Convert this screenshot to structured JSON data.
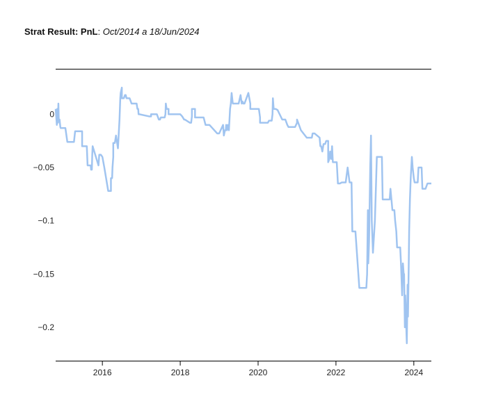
{
  "title": {
    "prefix": "Strat Result: PnL",
    "separator": ": ",
    "period": "Oct/2014 a 18/Jun/2024"
  },
  "chart_data": {
    "type": "line",
    "title": "Strat Result: PnL: Oct/2014 a 18/Jun/2024",
    "xlabel": "",
    "ylabel": "",
    "xlim": [
      2014.8,
      2024.45
    ],
    "ylim": [
      -0.232,
      0.042
    ],
    "grid": false,
    "x_ticks": [
      {
        "value": 2016,
        "label": "2016"
      },
      {
        "value": 2018,
        "label": "2018"
      },
      {
        "value": 2020,
        "label": "2020"
      },
      {
        "value": 2022,
        "label": "2022"
      },
      {
        "value": 2024,
        "label": "2024"
      }
    ],
    "y_ticks": [
      {
        "value": 0,
        "label": "0"
      },
      {
        "value": -0.05,
        "label": "−0.05"
      },
      {
        "value": -0.1,
        "label": "−0.1"
      },
      {
        "value": -0.15,
        "label": "−0.15"
      },
      {
        "value": -0.2,
        "label": "−0.2"
      }
    ],
    "series": [
      {
        "color": "#a0c4f0",
        "x": [
          2014.8,
          2014.83,
          2014.84,
          2014.86,
          2014.87,
          2014.88,
          2014.9,
          2014.92,
          2014.93,
          2014.95,
          2014.96,
          2015.05,
          2015.1,
          2015.1,
          2015.27,
          2015.3,
          2015.3,
          2015.48,
          2015.48,
          2015.6,
          2015.62,
          2015.65,
          2015.68,
          2015.7,
          2015.71,
          2015.73,
          2015.74,
          2015.75,
          2015.9,
          2015.92,
          2015.93,
          2015.96,
          2016.0,
          2016.05,
          2016.15,
          2016.2,
          2016.22,
          2016.22,
          2016.25,
          2016.26,
          2016.28,
          2016.28,
          2016.3,
          2016.32,
          2016.35,
          2016.35,
          2016.4,
          2016.44,
          2016.46,
          2016.47,
          2016.5,
          2016.5,
          2016.52,
          2016.55,
          2016.58,
          2016.6,
          2016.62,
          2016.7,
          2016.75,
          2016.75,
          2016.88,
          2016.9,
          2016.92,
          2016.93,
          2016.95,
          2016.95,
          2017.2,
          2017.22,
          2017.25,
          2017.25,
          2017.4,
          2017.45,
          2017.48,
          2017.5,
          2017.5,
          2017.6,
          2017.62,
          2017.63,
          2017.65,
          2017.7,
          2017.7,
          2017.9,
          2017.9,
          2018.0,
          2018.05,
          2018.05,
          2018.1,
          2018.12,
          2018.25,
          2018.28,
          2018.3,
          2018.3,
          2018.38,
          2018.38,
          2018.6,
          2018.65,
          2018.68,
          2018.68,
          2018.75,
          2018.75,
          2018.95,
          2018.98,
          2019.0,
          2019.0,
          2019.1,
          2019.12,
          2019.15,
          2019.17,
          2019.18,
          2019.2,
          2019.22,
          2019.25,
          2019.28,
          2019.3,
          2019.32,
          2019.35,
          2019.35,
          2019.5,
          2019.55,
          2019.58,
          2019.6,
          2019.62,
          2019.65,
          2019.7,
          2019.75,
          2019.8,
          2019.8,
          2019.95,
          2019.98,
          2020.0,
          2020.02,
          2020.05,
          2020.05,
          2020.2,
          2020.25,
          2020.28,
          2020.3,
          2020.32,
          2020.35,
          2020.37,
          2020.38,
          2020.4,
          2020.45,
          2020.5,
          2020.5,
          2020.62,
          2020.65,
          2020.7,
          2020.75,
          2020.78,
          2020.8,
          2020.8,
          2020.95,
          2021.0,
          2021.0,
          2021.05,
          2021.1,
          2021.1,
          2021.25,
          2021.3,
          2021.3,
          2021.38,
          2021.4,
          2021.45,
          2021.45,
          2021.58,
          2021.6,
          2021.62,
          2021.65,
          2021.68,
          2021.7,
          2021.72,
          2021.75,
          2021.78,
          2021.8,
          2021.8,
          2021.83,
          2021.85,
          2021.88,
          2021.9,
          2021.92,
          2021.95,
          2021.97,
          2022.0,
          2022.02,
          2022.05,
          2022.1,
          2022.15,
          2022.2,
          2022.22,
          2022.25,
          2022.3,
          2022.3,
          2022.35,
          2022.38,
          2022.4,
          2022.42,
          2022.45,
          2022.48,
          2022.5,
          2022.5,
          2022.6,
          2022.62,
          2022.65,
          2022.7,
          2022.72,
          2022.75,
          2022.78,
          2022.8,
          2022.82,
          2022.83,
          2022.85,
          2022.88,
          2022.9,
          2022.92,
          2022.95,
          2023.0,
          2023.05,
          2023.08,
          2023.1,
          2023.12,
          2023.15,
          2023.18,
          2023.2,
          2023.22,
          2023.25,
          2023.28,
          2023.3,
          2023.32,
          2023.35,
          2023.38,
          2023.4,
          2023.45,
          2023.5,
          2023.52,
          2023.55,
          2023.57,
          2023.6,
          2023.62,
          2023.64,
          2023.65,
          2023.67,
          2023.7,
          2023.72,
          2023.74,
          2023.75,
          2023.77,
          2023.78,
          2023.8,
          2023.81,
          2023.82,
          2023.84,
          2023.85,
          2023.87,
          2023.88,
          2023.9,
          2023.92,
          2023.95,
          2023.97,
          2024.0,
          2024.02,
          2024.05,
          2024.08,
          2024.1,
          2024.12,
          2024.15,
          2024.2,
          2024.22,
          2024.25,
          2024.3,
          2024.35,
          2024.4,
          2024.45
        ],
        "y": [
          0.005,
          -0.01,
          0.005,
          -0.008,
          0.01,
          -0.005,
          -0.005,
          -0.012,
          -0.013,
          -0.013,
          -0.013,
          -0.013,
          -0.026,
          -0.026,
          -0.026,
          -0.016,
          -0.016,
          -0.016,
          -0.03,
          -0.03,
          -0.048,
          -0.048,
          -0.048,
          -0.048,
          -0.052,
          -0.052,
          -0.038,
          -0.03,
          -0.048,
          -0.038,
          -0.038,
          -0.038,
          -0.04,
          -0.05,
          -0.072,
          -0.072,
          -0.072,
          -0.06,
          -0.06,
          -0.05,
          -0.04,
          -0.027,
          -0.027,
          -0.027,
          -0.02,
          -0.02,
          -0.032,
          -0.005,
          0.015,
          0.02,
          0.025,
          0.015,
          0.015,
          0.015,
          0.018,
          0.018,
          0.015,
          0.015,
          0.01,
          0.01,
          0.01,
          0.005,
          0.005,
          0.0,
          0.0,
          0.0,
          -0.002,
          -0.002,
          -0.002,
          0.0,
          0.0,
          -0.005,
          -0.005,
          -0.003,
          -0.003,
          -0.003,
          0.0,
          0.01,
          0.005,
          0.005,
          0.0,
          0.0,
          0.0,
          0.0,
          -0.002,
          -0.002,
          -0.005,
          -0.005,
          -0.008,
          -0.008,
          -0.002,
          0.005,
          0.005,
          -0.003,
          -0.003,
          -0.01,
          -0.01,
          -0.01,
          -0.01,
          -0.01,
          -0.018,
          -0.018,
          -0.018,
          -0.018,
          -0.01,
          -0.02,
          -0.015,
          -0.015,
          -0.01,
          -0.015,
          -0.01,
          -0.015,
          0.005,
          0.01,
          0.02,
          0.01,
          0.01,
          0.01,
          0.018,
          0.01,
          0.012,
          0.01,
          0.01,
          0.015,
          0.02,
          0.01,
          0.005,
          0.005,
          0.005,
          0.005,
          0.005,
          -0.003,
          -0.008,
          -0.008,
          -0.008,
          -0.006,
          -0.006,
          -0.006,
          -0.006,
          0.0,
          0.015,
          0.005,
          0.005,
          0.004,
          0.004,
          -0.005,
          -0.005,
          -0.005,
          -0.01,
          -0.012,
          -0.012,
          -0.012,
          -0.012,
          -0.008,
          -0.005,
          -0.01,
          -0.015,
          -0.015,
          -0.022,
          -0.022,
          -0.022,
          -0.022,
          -0.018,
          -0.018,
          -0.018,
          -0.022,
          -0.03,
          -0.03,
          -0.035,
          -0.028,
          -0.028,
          -0.028,
          -0.025,
          -0.025,
          -0.025,
          -0.045,
          -0.042,
          -0.035,
          -0.042,
          -0.03,
          -0.045,
          -0.045,
          -0.045,
          -0.045,
          -0.045,
          -0.065,
          -0.065,
          -0.064,
          -0.064,
          -0.064,
          -0.064,
          -0.05,
          -0.05,
          -0.064,
          -0.064,
          -0.064,
          -0.11,
          -0.11,
          -0.11,
          -0.11,
          -0.11,
          -0.163,
          -0.163,
          -0.163,
          -0.163,
          -0.163,
          -0.163,
          -0.163,
          -0.15,
          -0.09,
          -0.14,
          -0.12,
          -0.05,
          -0.02,
          -0.1,
          -0.13,
          -0.1,
          -0.04,
          -0.04,
          -0.04,
          -0.04,
          -0.04,
          -0.04,
          -0.08,
          -0.08,
          -0.08,
          -0.08,
          -0.08,
          -0.08,
          -0.08,
          -0.08,
          -0.07,
          -0.09,
          -0.09,
          -0.1,
          -0.11,
          -0.125,
          -0.125,
          -0.125,
          -0.125,
          -0.125,
          -0.14,
          -0.17,
          -0.14,
          -0.15,
          -0.15,
          -0.2,
          -0.17,
          -0.19,
          -0.205,
          -0.215,
          -0.16,
          -0.19,
          -0.14,
          -0.11,
          -0.08,
          -0.06,
          -0.04,
          -0.05,
          -0.06,
          -0.064,
          -0.064,
          -0.064,
          -0.064,
          -0.05,
          -0.05,
          -0.05,
          -0.07,
          -0.07,
          -0.07,
          -0.065,
          -0.065,
          -0.065
        ]
      }
    ]
  }
}
